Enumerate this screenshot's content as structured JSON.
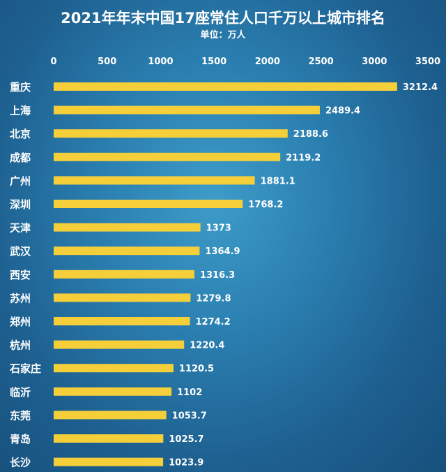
{
  "chart_data": {
    "type": "bar",
    "orientation": "horizontal",
    "title": "2021年年末中国17座常住人口千万以上城市排名",
    "subtitle": "单位：万人",
    "xlim": [
      0,
      3500
    ],
    "xticks": [
      0,
      500,
      1000,
      1500,
      2000,
      2500,
      3000,
      3500
    ],
    "categories": [
      "重庆",
      "上海",
      "北京",
      "成都",
      "广州",
      "深圳",
      "天津",
      "武汉",
      "西安",
      "苏州",
      "郑州",
      "杭州",
      "石家庄",
      "临沂",
      "东莞",
      "青岛",
      "长沙"
    ],
    "values": [
      3212.4,
      2489.4,
      2188.6,
      2119.2,
      1881.1,
      1768.2,
      1373,
      1364.9,
      1316.3,
      1279.8,
      1274.2,
      1220.4,
      1120.5,
      1102,
      1053.7,
      1025.7,
      1023.9
    ],
    "value_labels": [
      "3212.4",
      "2489.4",
      "2188.6",
      "2119.2",
      "1881.1",
      "1768.2",
      "1373",
      "1364.9",
      "1316.3",
      "1279.8",
      "1274.2",
      "1220.4",
      "1120.5",
      "1102",
      "1053.7",
      "1025.7",
      "1023.9"
    ],
    "bar_color": "#f5cf3a",
    "grid": false,
    "legend": "none"
  }
}
